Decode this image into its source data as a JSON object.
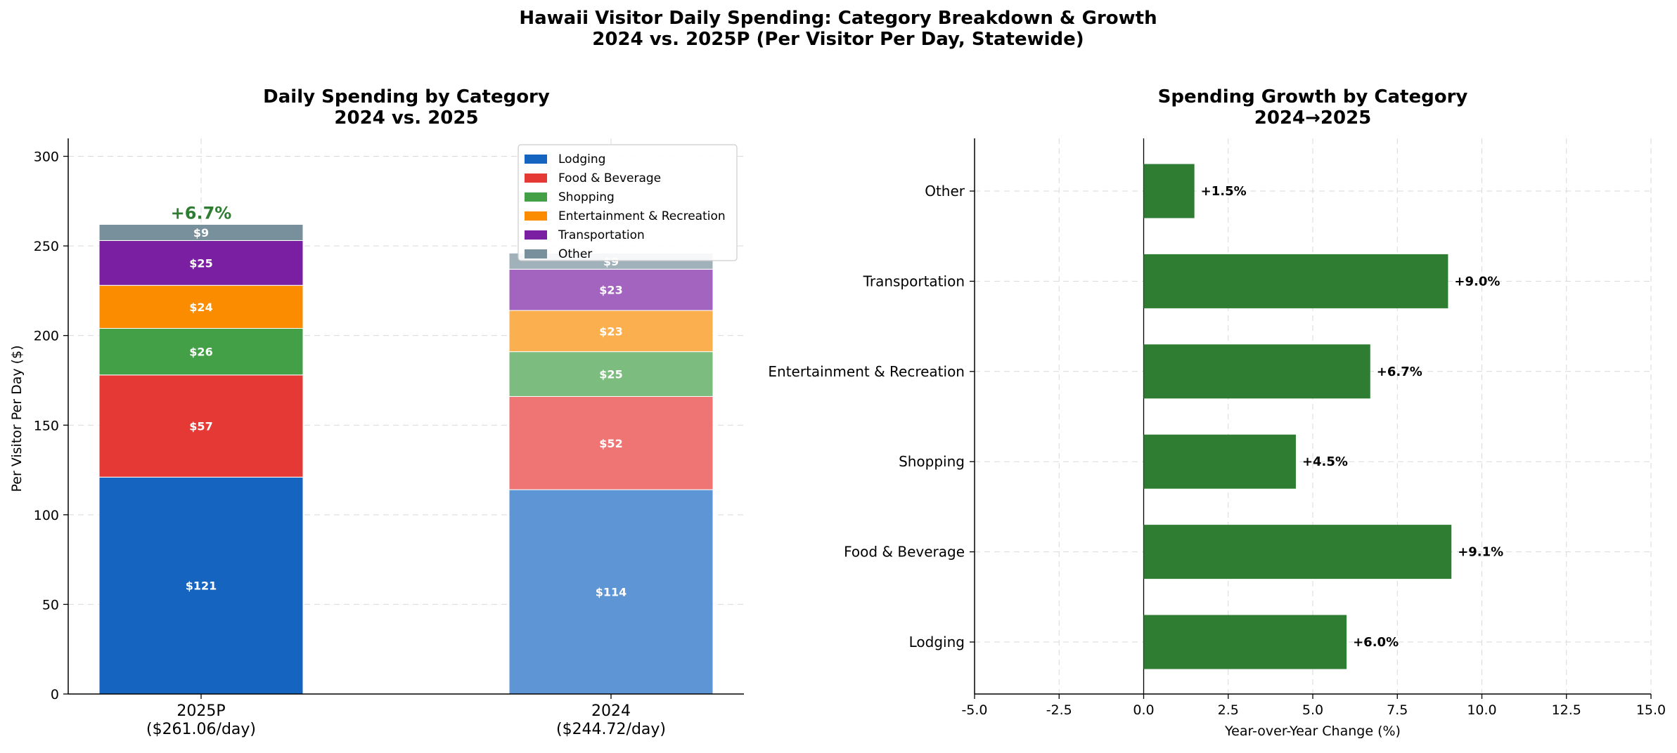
{
  "figure": {
    "title_line1": "Hawaii Visitor Daily Spending: Category Breakdown & Growth",
    "title_line2": "2024 vs. 2025P (Per Visitor Per Day, Statewide)"
  },
  "chart_data": [
    {
      "type": "bar",
      "stacked": true,
      "title_line1": "Daily Spending by Category",
      "title_line2": "2024 vs. 2025",
      "ylabel": "Per Visitor Per Day ($)",
      "xlabel": "",
      "ylim": [
        0,
        310
      ],
      "yticks": [
        0,
        50,
        100,
        150,
        200,
        250,
        300
      ],
      "grid": true,
      "legend_position": "top-right",
      "categories": [
        {
          "line1": "2025P",
          "line2": "($261.06/day)"
        },
        {
          "line1": "2024",
          "line2": "($244.72/day)"
        }
      ],
      "series": [
        {
          "name": "Lodging",
          "values": [
            121,
            114
          ],
          "labels": [
            "$121",
            "$114"
          ],
          "colors": [
            "#1565C0",
            "#5E95D5"
          ]
        },
        {
          "name": "Food & Beverage",
          "values": [
            57,
            52
          ],
          "labels": [
            "$57",
            "$52"
          ],
          "colors": [
            "#E53935",
            "#EE7573"
          ]
        },
        {
          "name": "Shopping",
          "values": [
            26,
            25
          ],
          "labels": [
            "$26",
            "$25"
          ],
          "colors": [
            "#43A047",
            "#7DBC7F"
          ]
        },
        {
          "name": "Entertainment & Recreation",
          "values": [
            24,
            23
          ],
          "labels": [
            "$24",
            "$23"
          ],
          "colors": [
            "#FB8C00",
            "#FCAF4F"
          ]
        },
        {
          "name": "Transportation",
          "values": [
            25,
            23
          ],
          "labels": [
            "$25",
            "$23"
          ],
          "colors": [
            "#7B1FA2",
            "#A364BF"
          ]
        },
        {
          "name": "Other",
          "values": [
            9,
            9
          ],
          "labels": [
            "$9",
            "$9"
          ],
          "colors": [
            "#78909C",
            "#A1B1BA"
          ]
        }
      ],
      "annotation": {
        "text": "+6.7%",
        "color": "#2E7D32"
      }
    },
    {
      "type": "bar",
      "orientation": "horizontal",
      "title_line1": "Spending Growth by Category",
      "title_line2": "2024→2025",
      "xlabel": "Year-over-Year Change (%)",
      "ylabel": "",
      "xlim": [
        -5,
        15
      ],
      "xticks": [
        -5,
        -2.5,
        0,
        2.5,
        5,
        7.5,
        10,
        12.5,
        15
      ],
      "xtick_labels": [
        "-5.0",
        "-2.5",
        "0.0",
        "2.5",
        "5.0",
        "7.5",
        "10.0",
        "12.5",
        "15.0"
      ],
      "grid": true,
      "categories": [
        "Lodging",
        "Food & Beverage",
        "Shopping",
        "Entertainment & Recreation",
        "Transportation",
        "Other"
      ],
      "values": [
        6.0,
        9.1,
        4.5,
        6.7,
        9.0,
        1.5
      ],
      "value_labels": [
        "+6.0%",
        "+9.1%",
        "+4.5%",
        "+6.7%",
        "+9.0%",
        "+1.5%"
      ],
      "bar_color": "#2E7D32"
    }
  ]
}
